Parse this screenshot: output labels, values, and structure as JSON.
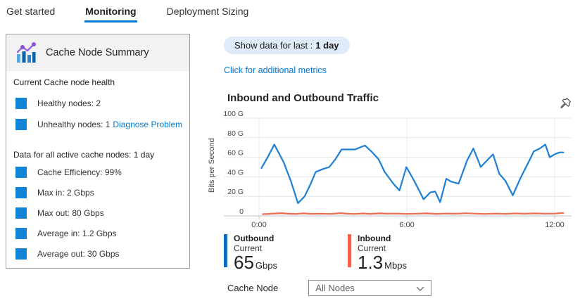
{
  "tabs": [
    {
      "label": "Get started",
      "active": false
    },
    {
      "label": "Monitoring",
      "active": true
    },
    {
      "label": "Deployment Sizing",
      "active": false
    }
  ],
  "summary_panel": {
    "title": "Cache Node Summary",
    "health_section": {
      "heading": "Current Cache node health",
      "items": [
        {
          "label": "Healthy nodes: 2",
          "link": ""
        },
        {
          "label": "Unhealthy nodes: 1",
          "link": "Diagnose Problem"
        }
      ]
    },
    "data_section": {
      "heading": "Data for all active cache nodes: 1 day",
      "items": [
        "Cache Efficiency: 99%",
        "Max in: 2 Gbps",
        "Max out: 80 Gbps",
        "Average in: 1.2 Gbps",
        "Average out: 30 Gbps"
      ]
    }
  },
  "main": {
    "time_filter": {
      "prefix": "Show data for last :",
      "value": "1 day"
    },
    "metrics_link": "Click for additional metrics",
    "chart_title": "Inbound and Outbound Traffic",
    "legend": [
      {
        "name": "Outbound",
        "sub": "Current",
        "value": "65",
        "unit": "Gbps",
        "color": "#0f6cbd"
      },
      {
        "name": "Inbound",
        "sub": "Current",
        "value": "1.3",
        "unit": "Mbps",
        "color": "#f1614d"
      }
    ],
    "cache_node": {
      "label": "Cache Node",
      "selected": "All Nodes"
    }
  },
  "colors": {
    "accent": "#0078d4",
    "square_blue": "#1184d8",
    "outbound_line": "#1b7fd6",
    "inbound_line": "#ee6a52"
  },
  "chart_data": {
    "type": "line",
    "title": "Inbound and Outbound Traffic",
    "xlabel": "",
    "ylabel": "Bits per Second",
    "ylim": [
      0,
      100
    ],
    "grid": true,
    "yticks": [
      {
        "v": 100,
        "label": "100 G"
      },
      {
        "v": 80,
        "label": "80 G"
      },
      {
        "v": 60,
        "label": "60 G"
      },
      {
        "v": 40,
        "label": "40 G"
      },
      {
        "v": 20,
        "label": "20 G"
      },
      {
        "v": 0,
        "label": "0"
      }
    ],
    "xticks": [
      {
        "h": 0,
        "label": "0:00"
      },
      {
        "h": 6,
        "label": "6:00"
      },
      {
        "h": 12,
        "label": "12:00"
      }
    ],
    "series": [
      {
        "name": "Outbound",
        "color": "#1b7fd6",
        "unit": "Gbps (axis G scale)",
        "points": [
          [
            0.1,
            49
          ],
          [
            0.35,
            60
          ],
          [
            0.62,
            73
          ],
          [
            1.0,
            55
          ],
          [
            1.3,
            35
          ],
          [
            1.58,
            13
          ],
          [
            1.85,
            20
          ],
          [
            2.1,
            33
          ],
          [
            2.3,
            45
          ],
          [
            2.6,
            48
          ],
          [
            2.85,
            50
          ],
          [
            3.1,
            58
          ],
          [
            3.35,
            68
          ],
          [
            3.9,
            68
          ],
          [
            4.3,
            72
          ],
          [
            4.6,
            65
          ],
          [
            4.85,
            58
          ],
          [
            5.1,
            45
          ],
          [
            5.45,
            33
          ],
          [
            5.7,
            26
          ],
          [
            5.98,
            50
          ],
          [
            6.25,
            38
          ],
          [
            6.5,
            26
          ],
          [
            6.68,
            17
          ],
          [
            6.95,
            24
          ],
          [
            7.15,
            25
          ],
          [
            7.35,
            14
          ],
          [
            7.6,
            38
          ],
          [
            7.8,
            35
          ],
          [
            8.1,
            33
          ],
          [
            8.45,
            57
          ],
          [
            8.7,
            69
          ],
          [
            9.0,
            50
          ],
          [
            9.3,
            58
          ],
          [
            9.5,
            63
          ],
          [
            9.75,
            43
          ],
          [
            10.0,
            36
          ],
          [
            10.3,
            21
          ],
          [
            10.6,
            38
          ],
          [
            10.8,
            48
          ],
          [
            11.0,
            58
          ],
          [
            11.15,
            66
          ],
          [
            11.4,
            69
          ],
          [
            11.62,
            73
          ],
          [
            11.8,
            60
          ],
          [
            12.0,
            63
          ],
          [
            12.2,
            65
          ],
          [
            12.35,
            65
          ]
        ]
      },
      {
        "name": "Inbound",
        "color": "#ee6a52",
        "unit": "renders just above 0 on G scale (current 1.3 Mbps)",
        "points": [
          [
            0.15,
            1.8
          ],
          [
            0.5,
            2.2
          ],
          [
            0.9,
            2.8
          ],
          [
            1.2,
            2.2
          ],
          [
            1.5,
            2.0
          ],
          [
            1.8,
            2.6
          ],
          [
            2.1,
            2.1
          ],
          [
            2.5,
            2.3
          ],
          [
            2.9,
            2.0
          ],
          [
            3.3,
            2.8
          ],
          [
            3.6,
            2.2
          ],
          [
            3.9,
            2.0
          ],
          [
            4.2,
            2.5
          ],
          [
            4.5,
            2.1
          ],
          [
            4.9,
            2.6
          ],
          [
            5.2,
            2.2
          ],
          [
            5.6,
            2.4
          ],
          [
            6.0,
            2.0
          ],
          [
            6.4,
            2.3
          ],
          [
            6.8,
            2.6
          ],
          [
            7.2,
            2.1
          ],
          [
            7.6,
            2.4
          ],
          [
            8.0,
            2.2
          ],
          [
            8.4,
            2.7
          ],
          [
            8.8,
            2.3
          ],
          [
            9.2,
            2.0
          ],
          [
            9.6,
            2.4
          ],
          [
            10.0,
            2.1
          ],
          [
            10.4,
            2.5
          ],
          [
            10.8,
            2.2
          ],
          [
            11.2,
            2.6
          ],
          [
            11.6,
            2.3
          ],
          [
            12.0,
            2.4
          ],
          [
            12.35,
            3.0
          ]
        ]
      }
    ]
  }
}
